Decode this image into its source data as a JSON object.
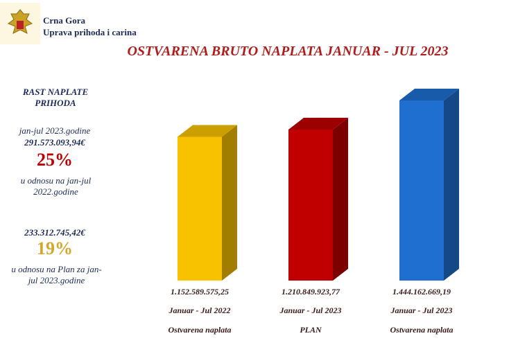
{
  "header": {
    "country": "Crna Gora",
    "agency": "Uprava prihoda i carina"
  },
  "side_panel": {
    "title": "RAST NAPLATE PRIHODA",
    "period": "jan-jul 2023.godine",
    "amount_1": "291.573.093,94€",
    "percent_1": "25%",
    "note_1": "u odnosu na jan-jul 2022.godine",
    "amount_2": "233.312.745,42€",
    "percent_2": "19%",
    "note_2": "u odnosu na Plan za jan-jul 2023.godine"
  },
  "chart_data": {
    "type": "bar",
    "title": "OSTVARENA BRUTO NAPLATA  JANUAR - JUL 2023",
    "categories": [
      "Januar - Jul 2022",
      "Januar - Jul 2023",
      "Januar - Jul 2023"
    ],
    "category_notes": [
      "Ostvarena naplata",
      "PLAN",
      "Ostvarena naplata"
    ],
    "values": [
      1152589575.25,
      1210849923.77,
      1444162669.19
    ],
    "value_labels": [
      "1.152.589.575,25",
      "1.210.849.923,77",
      "1.444.162.669,19"
    ],
    "colors": [
      "#f8c200",
      "#c00000",
      "#1f6fd0"
    ]
  }
}
